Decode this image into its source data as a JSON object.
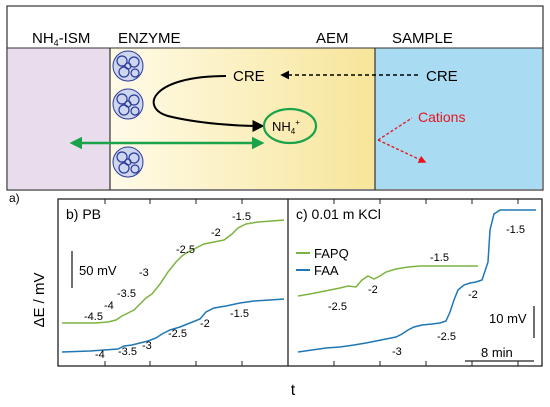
{
  "panel_a": {
    "tag": "a)",
    "zones": {
      "ism": "NH",
      "ism_sub": "4",
      "ism_rest": "-ISM",
      "enzyme": "ENZYME",
      "aem": "AEM",
      "sample": "SAMPLE"
    },
    "species": {
      "cre_inside": "CRE",
      "cre_sample": "CRE",
      "nh4": "NH",
      "nh4_sub": "4",
      "nh4_sup": "+",
      "cations": "Cations"
    },
    "colors": {
      "ism": "#e9dcec",
      "sample": "#a9dcf3",
      "aem": "#f7e8a4",
      "enzyme_fade": "#fffbe6",
      "cations": "#e8141c",
      "green": "#1aa34a",
      "enzyme_blob": "#2a3a9c"
    }
  },
  "panel_b": {
    "tag": "b) PB",
    "scalebar": "50 mV",
    "green_labels": [
      "-4.5",
      "-4",
      "-3.5",
      "-3",
      "-2.5",
      "-2",
      "-1.5"
    ],
    "blue_labels": [
      "-4",
      "-3.5",
      "-3",
      "-2.5",
      "-2",
      "-1.5"
    ]
  },
  "panel_c": {
    "tag": "c) 0.01 m KCl",
    "scalebar_v": "10 mV",
    "scalebar_h": "8 min",
    "legend": [
      {
        "name": "FAPQ",
        "color": "#7cb342"
      },
      {
        "name": "FAA",
        "color": "#1f77b4"
      }
    ],
    "green_labels": [
      "-2.5",
      "-2",
      "-1.5"
    ],
    "blue_labels": [
      "-3",
      "-2.5",
      "-2",
      "-1.5"
    ]
  },
  "axes": {
    "ylabel": "ΔE / mV",
    "xlabel": "t"
  },
  "series_colors": {
    "green": "#7cb342",
    "blue": "#1f77b4"
  }
}
